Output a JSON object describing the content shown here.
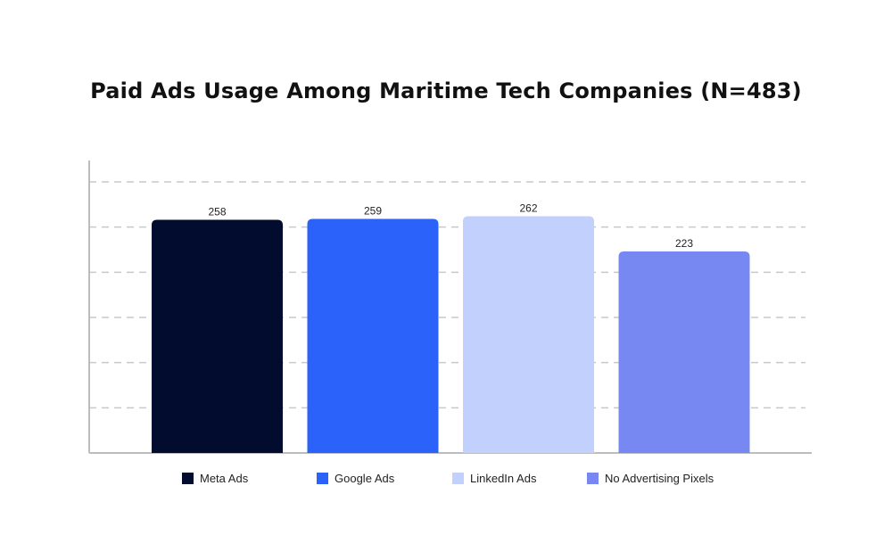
{
  "chart_data": {
    "type": "bar",
    "title": "Paid Ads Usage Among Maritime Tech Companies (N=483)",
    "categories": [
      "Meta Ads",
      "Google Ads",
      "LinkedIn Ads",
      "No Advertising Pixels"
    ],
    "values": [
      258,
      259,
      262,
      223
    ],
    "colors": [
      "#020c2e",
      "#2a62fa",
      "#c1d0fc",
      "#7888f2"
    ],
    "xlabel": "",
    "ylabel": "",
    "ylim": [
      0,
      300
    ],
    "grid": true,
    "legend": "bottom",
    "legend_entries": [
      "Meta Ads",
      "Google Ads",
      "LinkedIn Ads",
      "No Advertising Pixels"
    ],
    "data_labels": [
      "258",
      "259",
      "262",
      "223"
    ]
  }
}
